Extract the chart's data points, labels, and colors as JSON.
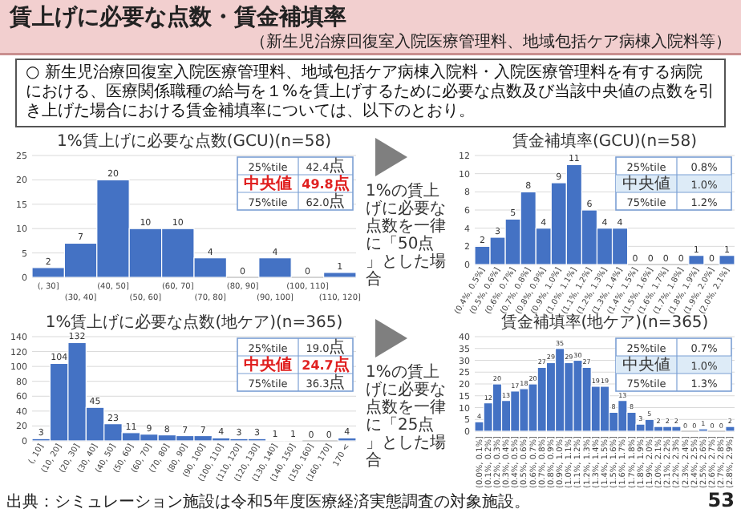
{
  "chart_data": [
    {
      "type": "other",
      "title": "賃上げに必要な点数・賃金補填率",
      "subtitle": "（新生児治療回復室入院医療管理料、地域包括ケア病棟入院料等）",
      "annotations": [
        "○ 新生児治療回復室入院医療管理料、地域包括ケア病棟入院料・入院医療管理料を有する病院における、医療関係職種の給与を１%を賃上げするために必要な点数及び当該中央値の点数を引き上げた場合における賃金補填率については、以下のとおり。",
        "出典：シミュレーション施設は令和5年度医療経済実態調査の対象施設。",
        "53"
      ]
    },
    {
      "type": "bar",
      "title": "1%賃上げに必要な点数(GCU)(n=58)",
      "categories": [
        "(, 30]",
        "(30, 40]",
        "(40, 50]",
        "(50, 60]",
        "(60, 70]",
        "(70, 80]",
        "(80, 90]",
        "(90, 100]",
        "(100, 110]",
        "(110, 120]"
      ],
      "values": [
        2,
        7,
        20,
        10,
        10,
        4,
        0,
        4,
        0,
        1
      ],
      "color": "#4472c4",
      "ylim": [
        0,
        25
      ],
      "yticks": [
        0,
        5,
        10,
        15,
        20,
        25
      ],
      "grid": "y",
      "data_labels": true,
      "annotations": [
        "25%tile",
        "42.4点",
        "中央値",
        "49.8点",
        "75%tile",
        "62.0点"
      ]
    },
    {
      "type": "bar",
      "title": "賃金補填率(GCU)(n=58)",
      "categories": [
        "(0.4%, 0.5%]",
        "(0.5%, 0.6%]",
        "(0.6%, 0.7%]",
        "(0.7%, 0.8%]",
        "(0.8%, 0.9%]",
        "(0.9%, 1.0%]",
        "(1.0%, 1.1%]",
        "(1.1%, 1.2%]",
        "(1.2%, 1.3%]",
        "(1.3%, 1.4%]",
        "(1.4%, 1.5%]",
        "(1.5%, 1.6%]",
        "(1.6%, 1.7%]",
        "(1.7%, 1.8%]",
        "(1.8%, 1.9%]",
        "(1.9%, 2.0%]",
        "(2.0%, 2.1%]"
      ],
      "values": [
        2,
        3,
        5,
        8,
        4,
        9,
        11,
        6,
        4,
        4,
        0,
        0,
        0,
        0,
        1,
        0,
        1
      ],
      "color": "#4472c4",
      "ylim": [
        0,
        12
      ],
      "yticks": [
        0,
        2,
        4,
        6,
        8,
        10,
        12
      ],
      "grid": "y",
      "data_labels": true,
      "annotations": [
        "25%tile",
        "0.8%",
        "中央値",
        "1.0%",
        "75%tile",
        "1.2%",
        "1%の賃上げに必要な点数を一律に「50点」とした場合"
      ]
    },
    {
      "type": "bar",
      "title": "1%賃上げに必要な点数(地ケア)(n=365)",
      "categories": [
        "(, 10]",
        "(10, 20]",
        "(20, 30]",
        "(30, 40]",
        "(40, 50]",
        "(50, 60]",
        "(60, 70]",
        "(70, 80]",
        "(80, 90]",
        "(90, 100]",
        "(100, 110]",
        "(110, 120]",
        "(120, 130]",
        "(130, 140]",
        "(140, 150]",
        "(150, 160]",
        "(160, 170]",
        "170 <"
      ],
      "values": [
        3,
        104,
        132,
        45,
        23,
        11,
        9,
        8,
        7,
        7,
        4,
        3,
        3,
        1,
        1,
        0,
        0,
        4
      ],
      "color": "#4472c4",
      "ylim": [
        0,
        140
      ],
      "yticks": [
        0,
        20,
        40,
        60,
        80,
        100,
        120,
        140
      ],
      "grid": "y",
      "data_labels": true,
      "annotations": [
        "25%tile",
        "19.0点",
        "中央値",
        "24.7点",
        "75%tile",
        "36.3点"
      ]
    },
    {
      "type": "bar",
      "title": "賃金補填率(地ケア)(n=365)",
      "categories": [
        "(0.0%, 0.1%]",
        "(0.1%, 0.2%]",
        "(0.2%, 0.3%]",
        "(0.3%, 0.4%]",
        "(0.4%, 0.5%]",
        "(0.5%, 0.6%]",
        "(0.6%, 0.7%]",
        "(0.7%, 0.8%]",
        "(0.8%, 0.9%]",
        "(0.9%, 1.0%]",
        "(1.0%, 1.1%]",
        "(1.1%, 1.2%]",
        "(1.2%, 1.3%]",
        "(1.3%, 1.4%]",
        "(1.4%, 1.5%]",
        "(1.5%, 1.6%]",
        "(1.6%, 1.7%]",
        "(1.7%, 1.8%]",
        "(1.8%, 1.9%]",
        "(1.9%, 2.0%]",
        "(2.0%, 2.1%]",
        "(2.1%, 2.2%]",
        "(2.2%, 2.3%]",
        "(2.3%, 2.4%]",
        "(2.4%, 2.5%]",
        "(2.5%, 2.6%]",
        "(2.6%, 2.7%]",
        "(2.7%, 2.8%]",
        "(2.8%, 2.9%]"
      ],
      "values": [
        4,
        12,
        20,
        13,
        17,
        18,
        20,
        27,
        29,
        35,
        29,
        30,
        27,
        19,
        19,
        8,
        13,
        8,
        3,
        5,
        2,
        2,
        2,
        0,
        0,
        1,
        0,
        0,
        2
      ],
      "color": "#4472c4",
      "ylim": [
        0,
        40
      ],
      "yticks": [
        0,
        5,
        10,
        15,
        20,
        25,
        30,
        35,
        40
      ],
      "grid": "y",
      "data_labels": true,
      "annotations": [
        "25%tile",
        "0.7%",
        "中央値",
        "1.0%",
        "75%tile",
        "1.3%",
        "1%の賃上げに必要な点数を一律に「25点」とした場合"
      ]
    }
  ]
}
